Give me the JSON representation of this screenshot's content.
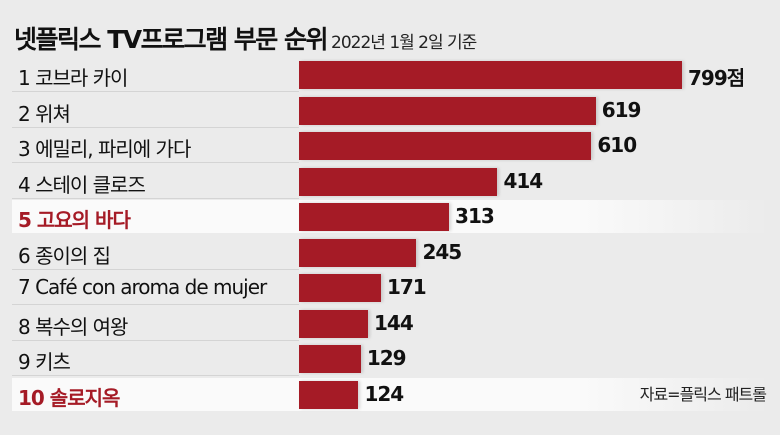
{
  "header": {
    "title": "넷플릭스 TV프로그램 부문 순위",
    "subtitle": "2022년 1월 2일 기준"
  },
  "source": "자료=플릭스 패트롤",
  "unit": "점",
  "colors": {
    "bar": "#a51b26",
    "highlight_text": "#a51b26"
  },
  "chart_data": {
    "type": "bar",
    "orientation": "horizontal",
    "title": "넷플릭스 TV프로그램 부문 순위",
    "subtitle": "2022년 1월 2일 기준",
    "categories": [
      "1 코브라 카이",
      "2 위쳐",
      "3 에밀리, 파리에 가다",
      "4 스테이 클로즈",
      "5 고요의 바다",
      "6 종이의 집",
      "7 Café con aroma de mujer",
      "8 복수의 여왕",
      "9 키츠",
      "10 솔로지옥"
    ],
    "values": [
      799,
      619,
      610,
      414,
      313,
      245,
      171,
      144,
      129,
      124
    ],
    "value_labels": [
      "799점",
      "619",
      "610",
      "414",
      "313",
      "245",
      "171",
      "144",
      "129",
      "124"
    ],
    "highlighted": [
      false,
      false,
      false,
      false,
      true,
      false,
      false,
      false,
      false,
      true
    ],
    "grid": false
  }
}
